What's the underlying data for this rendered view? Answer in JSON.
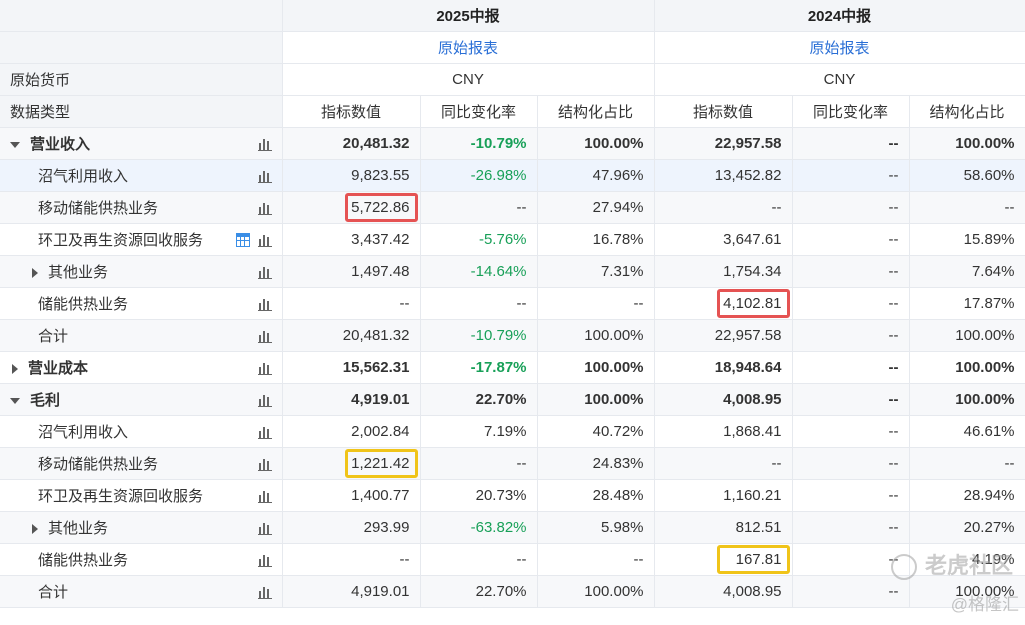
{
  "periods": [
    {
      "title": "2025中报",
      "report_link": "原始报表",
      "currency": "CNY",
      "cols": [
        "指标数值",
        "同比变化率",
        "结构化占比"
      ]
    },
    {
      "title": "2024中报",
      "report_link": "原始报表",
      "currency": "CNY",
      "cols": [
        "指标数值",
        "同比变化率",
        "结构化占比"
      ]
    }
  ],
  "currency_label": "原始货币",
  "datatype_label": "数据类型",
  "rows": [
    {
      "label": "营业收入",
      "v1": "20,481.32",
      "c1": "-10.79%",
      "s1": "100.00%",
      "v2": "22,957.58",
      "c2": "--",
      "s2": "100.00%"
    },
    {
      "label": "沼气利用收入",
      "v1": "9,823.55",
      "c1": "-26.98%",
      "s1": "47.96%",
      "v2": "13,452.82",
      "c2": "--",
      "s2": "58.60%"
    },
    {
      "label": "移动储能供热业务",
      "v1": "5,722.86",
      "c1": "--",
      "s1": "27.94%",
      "v2": "--",
      "c2": "--",
      "s2": "--"
    },
    {
      "label": "环卫及再生资源回收服务",
      "v1": "3,437.42",
      "c1": "-5.76%",
      "s1": "16.78%",
      "v2": "3,647.61",
      "c2": "--",
      "s2": "15.89%"
    },
    {
      "label": "其他业务",
      "v1": "1,497.48",
      "c1": "-14.64%",
      "s1": "7.31%",
      "v2": "1,754.34",
      "c2": "--",
      "s2": "7.64%"
    },
    {
      "label": "储能供热业务",
      "v1": "--",
      "c1": "--",
      "s1": "--",
      "v2": "4,102.81",
      "c2": "--",
      "s2": "17.87%"
    },
    {
      "label": "合计",
      "v1": "20,481.32",
      "c1": "-10.79%",
      "s1": "100.00%",
      "v2": "22,957.58",
      "c2": "--",
      "s2": "100.00%"
    },
    {
      "label": "营业成本",
      "v1": "15,562.31",
      "c1": "-17.87%",
      "s1": "100.00%",
      "v2": "18,948.64",
      "c2": "--",
      "s2": "100.00%"
    },
    {
      "label": "毛利",
      "v1": "4,919.01",
      "c1": "22.70%",
      "s1": "100.00%",
      "v2": "4,008.95",
      "c2": "--",
      "s2": "100.00%"
    },
    {
      "label": "沼气利用收入",
      "v1": "2,002.84",
      "c1": "7.19%",
      "s1": "40.72%",
      "v2": "1,868.41",
      "c2": "--",
      "s2": "46.61%"
    },
    {
      "label": "移动储能供热业务",
      "v1": "1,221.42",
      "c1": "--",
      "s1": "24.83%",
      "v2": "--",
      "c2": "--",
      "s2": "--"
    },
    {
      "label": "环卫及再生资源回收服务",
      "v1": "1,400.77",
      "c1": "20.73%",
      "s1": "28.48%",
      "v2": "1,160.21",
      "c2": "--",
      "s2": "28.94%"
    },
    {
      "label": "其他业务",
      "v1": "293.99",
      "c1": "-63.82%",
      "s1": "5.98%",
      "v2": "812.51",
      "c2": "--",
      "s2": "20.27%"
    },
    {
      "label": "储能供热业务",
      "v1": "--",
      "c1": "--",
      "s1": "--",
      "v2": "167.81",
      "c2": "--",
      "s2": "4.19%"
    },
    {
      "label": "合计",
      "v1": "4,919.01",
      "c1": "22.70%",
      "s1": "100.00%",
      "v2": "4,008.95",
      "c2": "--",
      "s2": "100.00%"
    }
  ],
  "watermark": {
    "main": "老虎社区",
    "sub": "@格隆汇"
  },
  "colors": {
    "negative_green": "#18a058",
    "link_blue": "#2a6fd6",
    "highlight_red": "#e55353",
    "highlight_yellow": "#f0c419"
  },
  "icons": [
    "bar-chart-icon",
    "table-icon",
    "caret-down-icon",
    "caret-right-icon"
  ]
}
